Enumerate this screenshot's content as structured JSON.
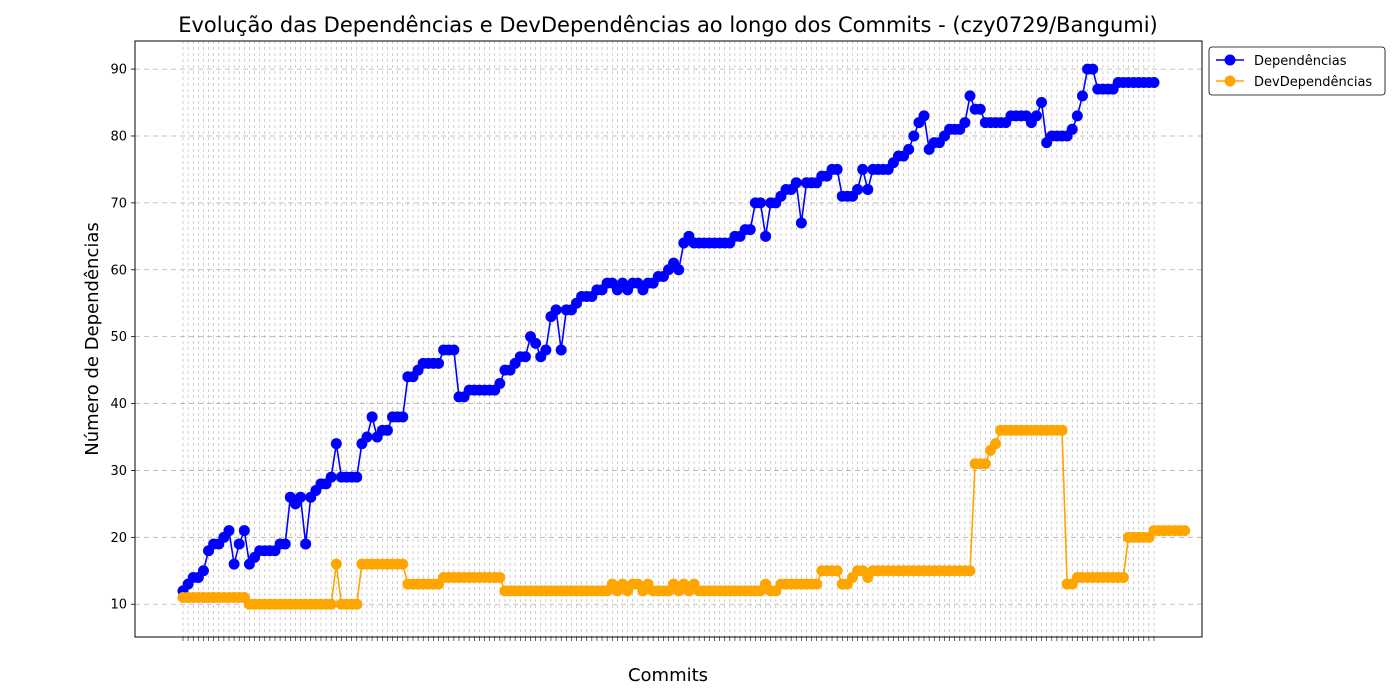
{
  "chart_data": {
    "type": "line",
    "title": "Evolução das Dependências e DevDependências ao longo dos Commits - (czy0729/Bangumi)",
    "xlabel": "Commits",
    "ylabel": "Número de Dependências",
    "ylim": [
      5.1,
      94.2
    ],
    "yticks": [
      10,
      20,
      30,
      40,
      50,
      60,
      70,
      80,
      90
    ],
    "grid": true,
    "legend_position": "outside-top-right",
    "colors": {
      "deps": "#0000ff",
      "dev": "#ffa500"
    },
    "series": [
      {
        "name": "Dependências",
        "color": "#0000ff",
        "values": [
          12,
          13,
          14,
          14,
          15,
          18,
          19,
          19,
          20,
          21,
          16,
          19,
          21,
          16,
          17,
          18,
          18,
          18,
          18,
          19,
          19,
          26,
          25,
          26,
          19,
          26,
          27,
          28,
          28,
          29,
          34,
          29,
          29,
          29,
          29,
          34,
          35,
          38,
          35,
          36,
          36,
          38,
          38,
          38,
          44,
          44,
          45,
          46,
          46,
          46,
          46,
          48,
          48,
          48,
          41,
          41,
          42,
          42,
          42,
          42,
          42,
          42,
          43,
          45,
          45,
          46,
          47,
          47,
          50,
          49,
          47,
          48,
          53,
          54,
          48,
          54,
          54,
          55,
          56,
          56,
          56,
          57,
          57,
          58,
          58,
          57,
          58,
          57,
          58,
          58,
          57,
          58,
          58,
          59,
          59,
          60,
          61,
          60,
          64,
          65,
          64,
          64,
          64,
          64,
          64,
          64,
          64,
          64,
          65,
          65,
          66,
          66,
          70,
          70,
          65,
          70,
          70,
          71,
          72,
          72,
          73,
          67,
          73,
          73,
          73,
          74,
          74,
          75,
          75,
          71,
          71,
          71,
          72,
          75,
          72,
          75,
          75,
          75,
          75,
          76,
          77,
          77,
          78,
          80,
          82,
          83,
          78,
          79,
          79,
          80,
          81,
          81,
          81,
          82,
          86,
          84,
          84,
          82,
          82,
          82,
          82,
          82,
          83,
          83,
          83,
          83,
          82,
          83,
          85,
          79,
          80,
          80,
          80,
          80,
          81,
          83,
          86,
          90,
          90,
          87,
          87,
          87,
          87,
          88,
          88,
          88,
          88,
          88,
          88,
          88,
          88
        ]
      },
      {
        "name": "DevDependências",
        "color": "#ffa500",
        "values": [
          11,
          11,
          11,
          11,
          11,
          11,
          11,
          11,
          11,
          11,
          11,
          11,
          11,
          10,
          10,
          10,
          10,
          10,
          10,
          10,
          10,
          10,
          10,
          10,
          10,
          10,
          10,
          10,
          10,
          10,
          16,
          10,
          10,
          10,
          10,
          16,
          16,
          16,
          16,
          16,
          16,
          16,
          16,
          16,
          13,
          13,
          13,
          13,
          13,
          13,
          13,
          14,
          14,
          14,
          14,
          14,
          14,
          14,
          14,
          14,
          14,
          14,
          14,
          12,
          12,
          12,
          12,
          12,
          12,
          12,
          12,
          12,
          12,
          12,
          12,
          12,
          12,
          12,
          12,
          12,
          12,
          12,
          12,
          12,
          13,
          12,
          13,
          12,
          13,
          13,
          12,
          13,
          12,
          12,
          12,
          12,
          13,
          12,
          13,
          12,
          13,
          12,
          12,
          12,
          12,
          12,
          12,
          12,
          12,
          12,
          12,
          12,
          12,
          12,
          13,
          12,
          12,
          13,
          13,
          13,
          13,
          13,
          13,
          13,
          13,
          15,
          15,
          15,
          15,
          13,
          13,
          14,
          15,
          15,
          14,
          15,
          15,
          15,
          15,
          15,
          15,
          15,
          15,
          15,
          15,
          15,
          15,
          15,
          15,
          15,
          15,
          15,
          15,
          15,
          15,
          31,
          31,
          31,
          33,
          34,
          36,
          36,
          36,
          36,
          36,
          36,
          36,
          36,
          36,
          36,
          36,
          36,
          36,
          13,
          13,
          14,
          14,
          14,
          14,
          14,
          14,
          14,
          14,
          14,
          14,
          20,
          20,
          20,
          20,
          20,
          21,
          21,
          21,
          21,
          21,
          21,
          21
        ]
      }
    ]
  }
}
